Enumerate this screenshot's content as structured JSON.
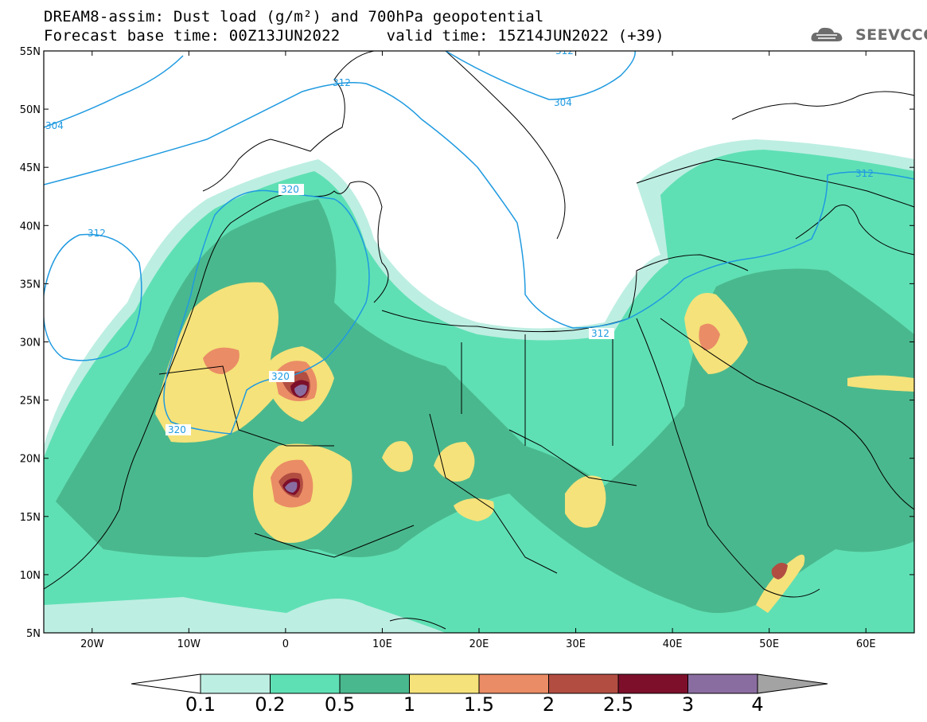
{
  "title": {
    "line1": "DREAM8-assim: Dust load (g/m²) and 700hPa geopotential",
    "line2": "Forecast base time: 00Z13JUN2022     valid time: 15Z14JUN2022 (+39)"
  },
  "logo": {
    "text": "SEEVCCC",
    "icon": "cloud-logo-icon"
  },
  "map": {
    "lon_range": [
      -25,
      65
    ],
    "lat_range": [
      5,
      55
    ],
    "lon_ticks": [
      "20W",
      "10W",
      "0",
      "10E",
      "20E",
      "30E",
      "40E",
      "50E",
      "60E"
    ],
    "lat_ticks": [
      "55N",
      "50N",
      "45N",
      "40N",
      "35N",
      "30N",
      "25N",
      "20N",
      "15N",
      "10N",
      "5N"
    ],
    "contour_labels": [
      "304",
      "312",
      "312",
      "320",
      "320",
      "320",
      "312",
      "312",
      "304",
      "312"
    ]
  },
  "colorbar": {
    "levels": [
      "0.1",
      "0.2",
      "0.5",
      "1",
      "1.5",
      "2",
      "2.5",
      "3",
      "4"
    ],
    "colors": [
      "#bdeee2",
      "#5fe0b4",
      "#4ab88e",
      "#f5e27a",
      "#ea8c66",
      "#b24d42",
      "#7d0f2b",
      "#8a6da0"
    ],
    "under_color": "#ffffff",
    "over_color": "#a3a3a3"
  }
}
